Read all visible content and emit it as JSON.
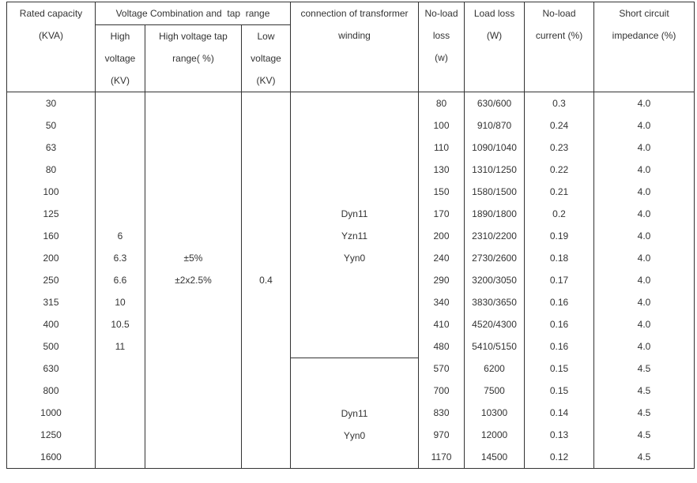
{
  "headers": {
    "rated_capacity": [
      "Rated capacity",
      "(KVA)"
    ],
    "voltage_combination": "Voltage Combination and  tap  range",
    "high_voltage": [
      "High",
      "voltage",
      "(KV)"
    ],
    "tap_range": [
      "High voltage tap",
      "range( %)"
    ],
    "low_voltage": [
      "Low",
      "voltage",
      "(KV)"
    ],
    "connection": [
      "connection of transformer",
      "winding"
    ],
    "no_load_loss": [
      "No-load",
      "loss",
      "(w)"
    ],
    "load_loss": [
      "Load loss",
      "(W)"
    ],
    "no_load_current": [
      "No-load",
      "current (%)"
    ],
    "impedance": [
      "Short circuit",
      "impedance (%)"
    ]
  },
  "rows": [
    {
      "capacity": "30",
      "no_load_loss": "80",
      "load_loss": "630/600",
      "current": "0.3",
      "impedance": "4.0"
    },
    {
      "capacity": "50",
      "no_load_loss": "100",
      "load_loss": "910/870",
      "current": "0.24",
      "impedance": "4.0"
    },
    {
      "capacity": "63",
      "no_load_loss": "110",
      "load_loss": "1090/1040",
      "current": "0.23",
      "impedance": "4.0"
    },
    {
      "capacity": "80",
      "no_load_loss": "130",
      "load_loss": "1310/1250",
      "current": "0.22",
      "impedance": "4.0"
    },
    {
      "capacity": "100",
      "no_load_loss": "150",
      "load_loss": "1580/1500",
      "current": "0.21",
      "impedance": "4.0"
    },
    {
      "capacity": "125",
      "no_load_loss": "170",
      "load_loss": "1890/1800",
      "current": "0.2",
      "impedance": "4.0"
    },
    {
      "capacity": "160",
      "no_load_loss": "200",
      "load_loss": "2310/2200",
      "current": "0.19",
      "impedance": "4.0"
    },
    {
      "capacity": "200",
      "no_load_loss": "240",
      "load_loss": "2730/2600",
      "current": "0.18",
      "impedance": "4.0"
    },
    {
      "capacity": "250",
      "no_load_loss": "290",
      "load_loss": "3200/3050",
      "current": "0.17",
      "impedance": "4.0"
    },
    {
      "capacity": "315",
      "no_load_loss": "340",
      "load_loss": "3830/3650",
      "current": "0.16",
      "impedance": "4.0"
    },
    {
      "capacity": "400",
      "no_load_loss": "410",
      "load_loss": "4520/4300",
      "current": "0.16",
      "impedance": "4.0"
    },
    {
      "capacity": "500",
      "no_load_loss": "480",
      "load_loss": "5410/5150",
      "current": "0.16",
      "impedance": "4.0"
    },
    {
      "capacity": "630",
      "no_load_loss": "570",
      "load_loss": "6200",
      "current": "0.15",
      "impedance": "4.5"
    },
    {
      "capacity": "800",
      "no_load_loss": "700",
      "load_loss": "7500",
      "current": "0.15",
      "impedance": "4.5"
    },
    {
      "capacity": "1000",
      "no_load_loss": "830",
      "load_loss": "10300",
      "current": "0.14",
      "impedance": "4.5"
    },
    {
      "capacity": "1250",
      "no_load_loss": "970",
      "load_loss": "12000",
      "current": "0.13",
      "impedance": "4.5"
    },
    {
      "capacity": "1600",
      "no_load_loss": "1170",
      "load_loss": "14500",
      "current": "0.12",
      "impedance": "4.5"
    }
  ],
  "high_voltage_values": [
    "6",
    "6.3",
    "6.6",
    "10",
    "10.5",
    "11"
  ],
  "tap_range_values": [
    "±5%",
    "±2x2.5%"
  ],
  "low_voltage_value": "0.4",
  "connection_group_1": [
    "Dyn11",
    "Yzn11",
    "Yyn0"
  ],
  "connection_group_2": [
    "Dyn11",
    "Yyn0"
  ]
}
